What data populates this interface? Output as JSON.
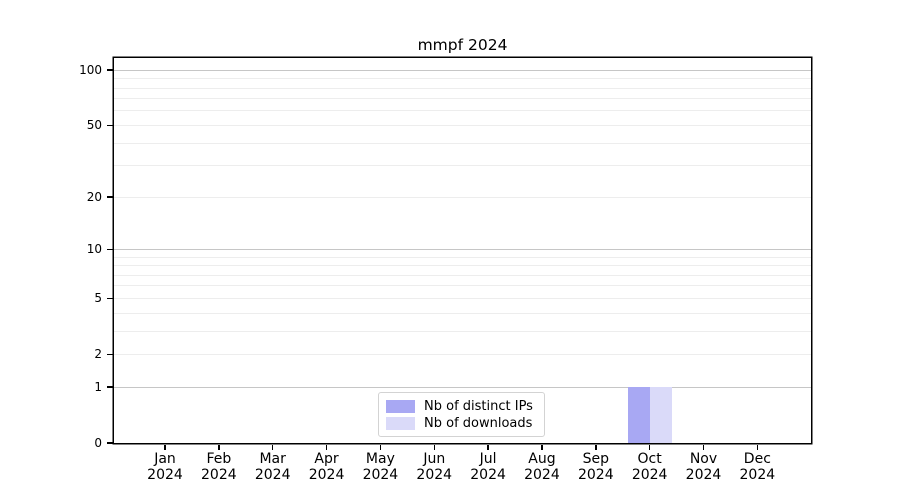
{
  "chart_data": {
    "type": "bar",
    "title": "mmpf 2024",
    "x_year": "2024",
    "categories": [
      "Jan",
      "Feb",
      "Mar",
      "Apr",
      "May",
      "Jun",
      "Jul",
      "Aug",
      "Sep",
      "Oct",
      "Nov",
      "Dec"
    ],
    "series": [
      {
        "name": "Nb of distinct IPs",
        "color": "#a8a8f3",
        "values": [
          0,
          0,
          0,
          0,
          0,
          0,
          0,
          0,
          0,
          1,
          0,
          0
        ]
      },
      {
        "name": "Nb of downloads",
        "color": "#dadaf9",
        "values": [
          0,
          0,
          0,
          0,
          0,
          0,
          0,
          0,
          0,
          1,
          0,
          0
        ]
      }
    ],
    "y_axis": {
      "scale": "log10(value+1)",
      "ticks": [
        0,
        1,
        2,
        5,
        10,
        20,
        50,
        100
      ],
      "max_value": 116.5,
      "major_gridlines": [
        1,
        10,
        100
      ],
      "minor_gridlines": [
        2,
        3,
        4,
        5,
        6,
        7,
        8,
        9,
        20,
        30,
        40,
        50,
        60,
        70,
        80,
        90
      ]
    },
    "x_axis": {
      "tick_count": 12
    },
    "legend": {
      "position": "bottom-center"
    },
    "colors": {
      "bar_distinct_ips": "#a8a8f3",
      "bar_downloads": "#dadaf9",
      "major_grid": "#c6c6c6",
      "minor_grid": "#ededed",
      "axis": "#000000",
      "background": "#ffffff"
    },
    "grid": true
  }
}
